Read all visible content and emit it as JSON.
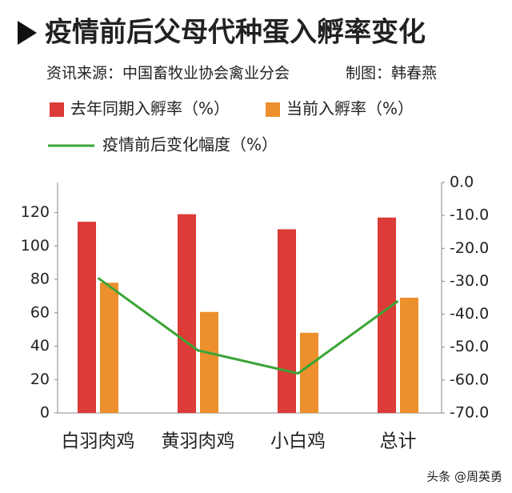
{
  "chart_data": {
    "type": "bar",
    "title": "疫情前后父母代种蛋入孵率变化",
    "subtitle": "资讯来源：中国畜牧业协会禽业分会",
    "credit": "制图：韩春燕",
    "watermark": "头条 @周英勇",
    "categories": [
      "白羽肉鸡",
      "黄羽肉鸡",
      "小白鸡",
      "总计"
    ],
    "series": [
      {
        "name": "去年同期入孵率（%）",
        "type": "bar",
        "color": "#dc3b37",
        "values": [
          114.5,
          119,
          110,
          117
        ]
      },
      {
        "name": "当前入孵率（%）",
        "type": "bar",
        "color": "#ec8f2c",
        "values": [
          78,
          60.5,
          48,
          69
        ]
      },
      {
        "name": "疫情前后变化幅度（%）",
        "type": "line",
        "axis": "y2",
        "color": "#3aa535",
        "values": [
          -29,
          -51,
          -58,
          -36
        ]
      }
    ],
    "ylim": [
      0,
      138
    ],
    "yticks": [
      0,
      20,
      40,
      60,
      80,
      100,
      120
    ],
    "y2lim": [
      -70,
      0
    ],
    "y2ticks": [
      {
        "value": 0,
        "label": "0.0"
      },
      {
        "value": -10,
        "label": "-10.0"
      },
      {
        "value": -20,
        "label": "-20.0"
      },
      {
        "value": -30,
        "label": "-30.0"
      },
      {
        "value": -40,
        "label": "-40.0"
      },
      {
        "value": -50,
        "label": "-50.0"
      },
      {
        "value": -60,
        "label": "-60.0"
      },
      {
        "value": -70,
        "label": "-70.0"
      }
    ],
    "grid": false
  }
}
